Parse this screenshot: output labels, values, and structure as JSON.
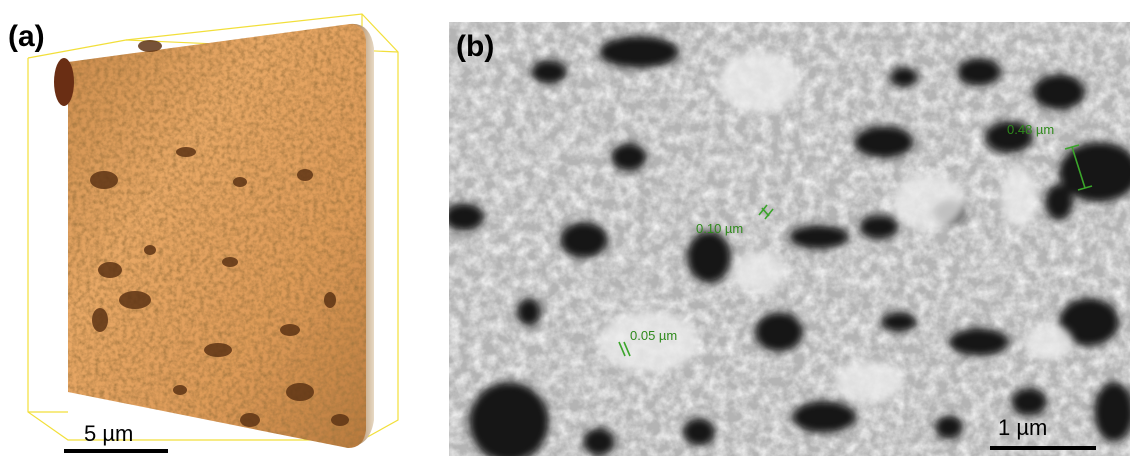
{
  "figure": {
    "panel_a": {
      "label": "(a)",
      "scale_bar_label": "5 µm"
    },
    "panel_b": {
      "label": "(b)",
      "scale_bar_label": "1 µm",
      "measurements": [
        {
          "label": "0.48 µm"
        },
        {
          "label": "0.10 µm"
        },
        {
          "label": "0.05 µm"
        }
      ]
    },
    "colors": {
      "volume_light": "#e8a866",
      "volume_mid": "#c98a4b",
      "volume_dark": "#5e3414",
      "bounding_box": "#f2df3a",
      "sem_background": "#b8b8b8",
      "pore_dark": "#111111",
      "measure_green": "#2f8a1c"
    }
  }
}
